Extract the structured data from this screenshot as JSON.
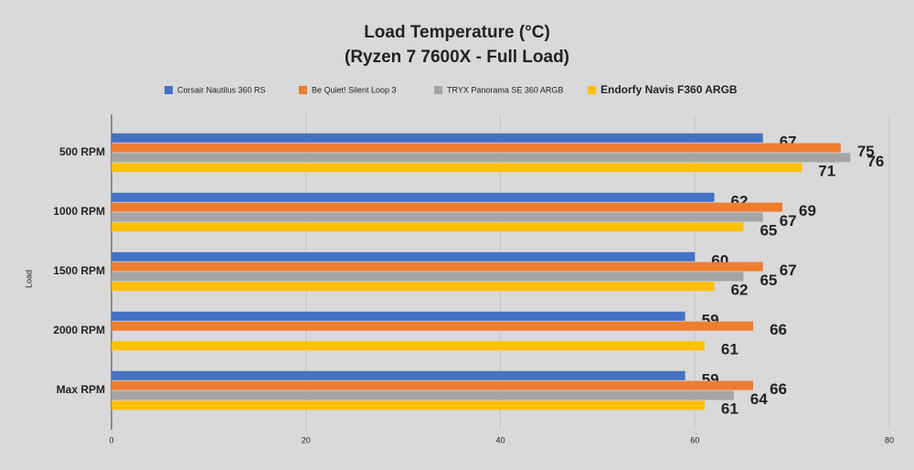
{
  "chart_data": {
    "type": "bar",
    "orientation": "horizontal",
    "title": "Load Temperature (°C)",
    "subtitle": "(Ryzen 7 7600X - Full Load)",
    "y_label": "Load",
    "categories": [
      "500 RPM",
      "1000 RPM",
      "1500 RPM",
      "2000 RPM",
      "Max RPM"
    ],
    "series": [
      {
        "name": "Corsair Nautilus 360 RS",
        "color": "#4472c4",
        "values": [
          67,
          62,
          60,
          59,
          59
        ]
      },
      {
        "name": "Be Quiet! Silent Loop 3",
        "color": "#ed7d31",
        "values": [
          75,
          69,
          67,
          66,
          66
        ]
      },
      {
        "name": "TRYX Panorama SE 360 ARGB",
        "color": "#a5a5a5",
        "values": [
          76,
          67,
          65,
          null,
          64
        ]
      },
      {
        "name": "Endorfy Navis F360 ARGB",
        "color": "#ffc000",
        "values": [
          71,
          65,
          62,
          61,
          61
        ]
      }
    ],
    "xlim": [
      0,
      80
    ],
    "xticks": [
      0,
      20,
      40,
      60,
      80
    ],
    "grid": true,
    "legend": "top"
  }
}
